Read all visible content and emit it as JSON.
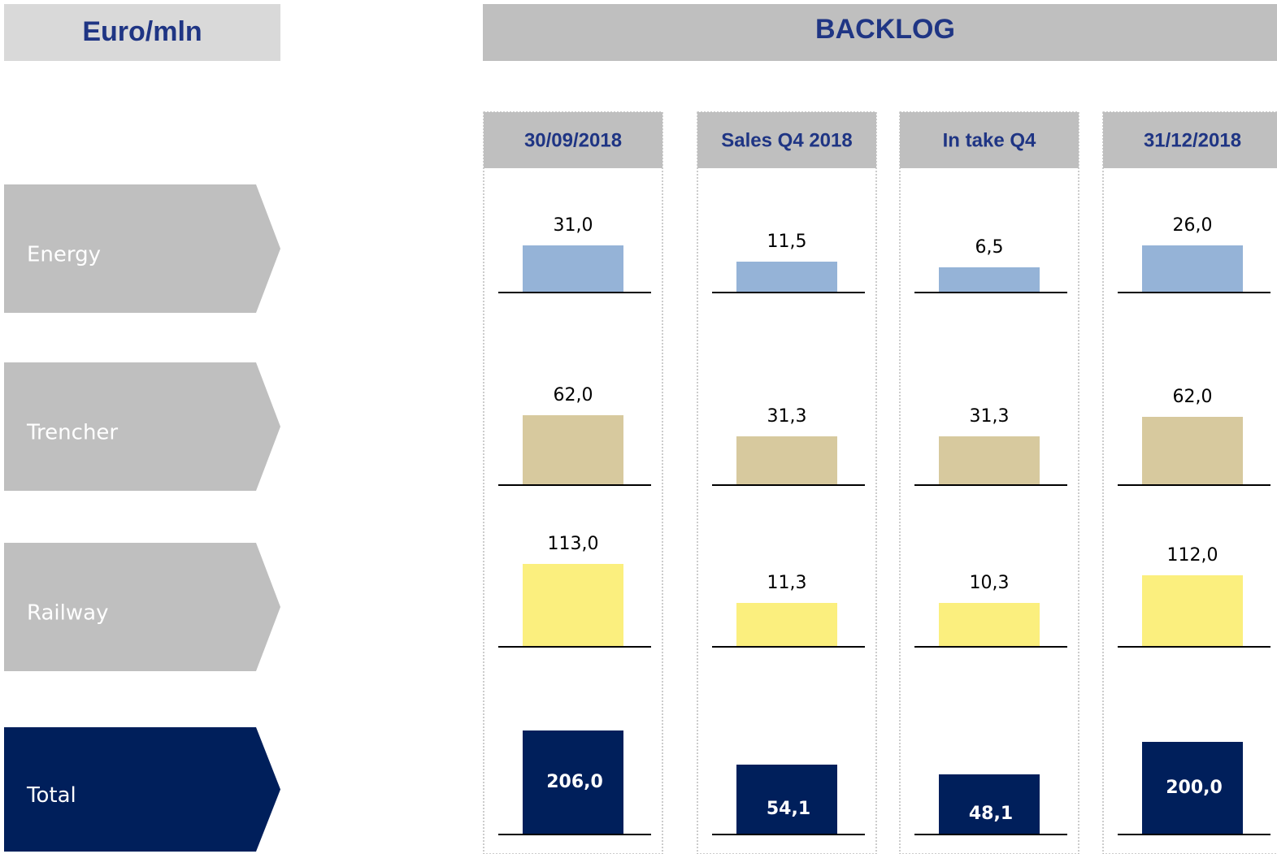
{
  "header": {
    "unit": "Euro/mln",
    "title": "BACKLOG"
  },
  "columns": [
    "30/09/2018",
    "Sales Q4 2018",
    "In take Q4",
    "31/12/2018"
  ],
  "rows": [
    {
      "label": "Energy",
      "values": [
        "31,0",
        "11,5",
        "6,5",
        "26,0"
      ]
    },
    {
      "label": "Trencher",
      "values": [
        "62,0",
        "31,3",
        "31,3",
        "62,0"
      ]
    },
    {
      "label": "Railway",
      "values": [
        "113,0",
        "11,3",
        "10,3",
        "112,0"
      ]
    },
    {
      "label": "Total",
      "values": [
        "206,0",
        "54,1",
        "48,1",
        "200,0"
      ]
    }
  ]
}
